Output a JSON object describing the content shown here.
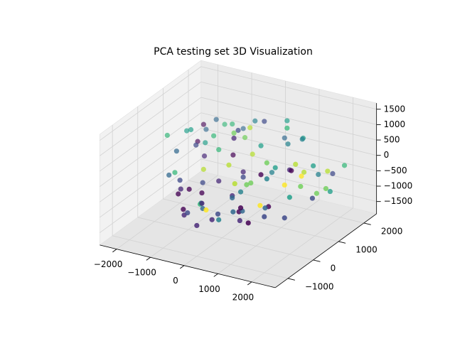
{
  "chart_data": {
    "type": "scatter3d",
    "title": "PCA testing set 3D Visualization",
    "palette": [
      "#440154",
      "#482878",
      "#3e4989",
      "#31688e",
      "#26828e",
      "#1f9e89",
      "#35b779",
      "#6ece58",
      "#b5de2b",
      "#fde725"
    ],
    "x": [
      -1900,
      -1600,
      -1400,
      -1200,
      -1000,
      -800,
      -600,
      -400,
      -200,
      0,
      200,
      400,
      600,
      800,
      1000,
      1200,
      1400,
      1600,
      1800,
      2000,
      2200,
      -1500,
      -300,
      900,
      -1800,
      -1300,
      -900,
      -500,
      -100,
      300,
      700,
      1100,
      1500,
      1900,
      2300,
      -1700,
      -1100,
      -700,
      -300,
      100,
      500,
      900,
      1300,
      1700,
      2100,
      -600,
      400,
      1000,
      -2000,
      -1500,
      -1000,
      -500,
      0,
      500,
      1000,
      1500,
      2000,
      2400,
      -1200,
      -800,
      -400,
      0,
      400,
      800,
      1200,
      1600,
      2000,
      -1000,
      -200,
      600,
      1400,
      2200,
      -1600,
      -1000,
      -400,
      200,
      800,
      1400,
      2000,
      -1300,
      -700,
      -100,
      500,
      1100,
      1700,
      2300,
      -900,
      -300,
      300,
      900,
      1500,
      -1400,
      -200,
      700,
      1300,
      1800
    ],
    "y": [
      1800,
      1500,
      1200,
      900,
      600,
      300,
      0,
      -300,
      -600,
      -800,
      -900,
      -700,
      -400,
      -100,
      200,
      500,
      800,
      1100,
      1400,
      1700,
      1900,
      200,
      1300,
      -500,
      1000,
      700,
      1600,
      1100,
      400,
      0,
      -200,
      300,
      -300,
      600,
      1200,
      1300,
      -200,
      800,
      1500,
      700,
      1800,
      1400,
      100,
      -600,
      300,
      -700,
      1000,
      -900,
      500,
      -100,
      -400,
      -700,
      -1000,
      -800,
      -600,
      -500,
      0,
      900,
      1700,
      1900,
      400,
      1200,
      300,
      900,
      1600,
      600,
      -200,
      1000,
      -500,
      -300,
      1300,
      800,
      900,
      -300,
      1000,
      1400,
      -400,
      -100,
      1500,
      1500,
      -600,
      600,
      1900,
      1100,
      200,
      500,
      -100,
      1700,
      -800,
      -400,
      900,
      0,
      900,
      200,
      -700,
      1200
    ],
    "z": [
      200,
      300,
      100,
      -100,
      -300,
      -500,
      -600,
      -700,
      -500,
      -300,
      -400,
      -600,
      -200,
      100,
      300,
      400,
      200,
      0,
      -200,
      -300,
      -100,
      400,
      500,
      -800,
      500,
      350,
      600,
      0,
      200,
      -450,
      -100,
      650,
      -350,
      250,
      -500,
      0,
      -200,
      300,
      700,
      -150,
      400,
      550,
      -600,
      -400,
      150,
      -900,
      600,
      -250,
      600,
      -200,
      -500,
      -800,
      -900,
      -700,
      -300,
      -150,
      -50,
      -200,
      450,
      300,
      -400,
      100,
      0,
      -100,
      700,
      350,
      -600,
      550,
      -700,
      200,
      900,
      -350,
      650,
      -400,
      800,
      1100,
      -600,
      450,
      -100,
      700,
      -800,
      950,
      900,
      1300,
      150,
      -300,
      -500,
      800,
      -750,
      -550,
      350,
      -150,
      1000,
      -50,
      -650,
      200
    ],
    "c": [
      0,
      3,
      5,
      1,
      8,
      2,
      0,
      4,
      6,
      1,
      9,
      2,
      3,
      7,
      0,
      5,
      1,
      8,
      4,
      2,
      6,
      3,
      7,
      1,
      5,
      2,
      6,
      0,
      8,
      1,
      4,
      7,
      3,
      9,
      5,
      0,
      2,
      6,
      8,
      1,
      3,
      4,
      0,
      2,
      7,
      1,
      5,
      3,
      6,
      3,
      0,
      2,
      1,
      4,
      0,
      9,
      5,
      7,
      6,
      3,
      1,
      8,
      2,
      4,
      5,
      0,
      2,
      6,
      3,
      8,
      4,
      7,
      5,
      1,
      7,
      2,
      0,
      4,
      8,
      3,
      0,
      1,
      5,
      6,
      9,
      2,
      0,
      4,
      1,
      3,
      8,
      6,
      2,
      7,
      0,
      5
    ],
    "xlim": [
      -2500,
      2700
    ],
    "ylim": [
      -1500,
      2500
    ],
    "zlim": [
      -1900,
      1700
    ],
    "xticks": [
      {
        "value": -2000,
        "label": "−2000"
      },
      {
        "value": -1000,
        "label": "−1000"
      },
      0,
      1000,
      2000
    ],
    "yticks": [
      {
        "value": -1000,
        "label": "−1000"
      },
      0,
      1000,
      2000
    ],
    "zticks": [
      {
        "value": -1500,
        "label": "−1500"
      },
      {
        "value": -1000,
        "label": "−1000"
      },
      {
        "value": -500,
        "label": "−500"
      },
      0,
      500,
      1000,
      1500
    ],
    "grid": true
  }
}
